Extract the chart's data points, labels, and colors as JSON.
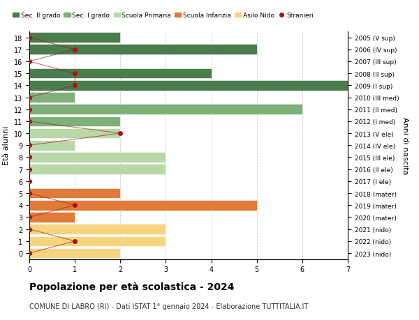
{
  "ages": [
    18,
    17,
    16,
    15,
    14,
    13,
    12,
    11,
    10,
    9,
    8,
    7,
    6,
    5,
    4,
    3,
    2,
    1,
    0
  ],
  "years": [
    "2005 (V sup)",
    "2006 (IV sup)",
    "2007 (III sup)",
    "2008 (II sup)",
    "2009 (I sup)",
    "2010 (III med)",
    "2011 (II med)",
    "2012 (I med)",
    "2013 (V ele)",
    "2014 (IV ele)",
    "2015 (III ele)",
    "2016 (II ele)",
    "2017 (I ele)",
    "2018 (mater)",
    "2019 (mater)",
    "2020 (mater)",
    "2021 (nido)",
    "2022 (nido)",
    "2023 (nido)"
  ],
  "bar_values": [
    2,
    5,
    0,
    4,
    7,
    1,
    6,
    2,
    2,
    1,
    3,
    3,
    0,
    2,
    5,
    1,
    3,
    3,
    2
  ],
  "bar_colors": [
    "#4a7c4e",
    "#4a7c4e",
    "#4a7c4e",
    "#4a7c4e",
    "#4a7c4e",
    "#7fb07a",
    "#7fb07a",
    "#7fb07a",
    "#b8d8a8",
    "#b8d8a8",
    "#b8d8a8",
    "#b8d8a8",
    "#b8d8a8",
    "#e07b39",
    "#e07b39",
    "#e07b39",
    "#f5d580",
    "#f5d580",
    "#f5d580"
  ],
  "stranieri_ages": [
    18,
    17,
    16,
    15,
    14,
    13,
    12,
    11,
    10,
    9,
    8,
    7,
    6,
    5,
    4,
    3,
    2,
    1,
    0
  ],
  "stranieri_x": [
    0,
    1,
    0,
    1,
    1,
    0,
    0,
    0,
    2,
    0,
    0,
    0,
    0,
    0,
    1,
    0,
    0,
    1,
    0
  ],
  "title": "Popolazione per età scolastica - 2024",
  "subtitle": "COMUNE DI LABRO (RI) - Dati ISTAT 1° gennaio 2024 - Elaborazione TUTTITALIA.IT",
  "ylabel": "Età alunni",
  "right_ylabel": "Anni di nascita",
  "color_sec2": "#4a7c4e",
  "color_sec1": "#7fb07a",
  "color_primaria": "#b8d8a8",
  "color_infanzia": "#e07b39",
  "color_nido": "#f5d580",
  "color_stranieri": "#aa1111",
  "grid_color": "#cccccc"
}
